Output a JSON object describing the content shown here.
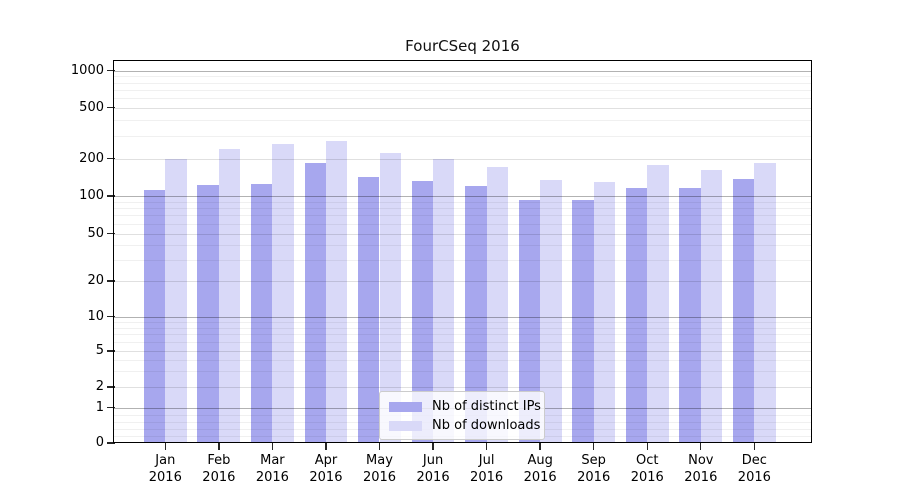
{
  "chart_data": {
    "type": "bar",
    "title": "FourCSeq 2016",
    "categories": [
      {
        "month": "Jan",
        "year": "2016"
      },
      {
        "month": "Feb",
        "year": "2016"
      },
      {
        "month": "Mar",
        "year": "2016"
      },
      {
        "month": "Apr",
        "year": "2016"
      },
      {
        "month": "May",
        "year": "2016"
      },
      {
        "month": "Jun",
        "year": "2016"
      },
      {
        "month": "Jul",
        "year": "2016"
      },
      {
        "month": "Aug",
        "year": "2016"
      },
      {
        "month": "Sep",
        "year": "2016"
      },
      {
        "month": "Oct",
        "year": "2016"
      },
      {
        "month": "Nov",
        "year": "2016"
      },
      {
        "month": "Dec",
        "year": "2016"
      }
    ],
    "series": [
      {
        "name": "Nb of distinct IPs",
        "color": "#a7a7ee",
        "values": [
          112,
          122,
          125,
          183,
          142,
          133,
          120,
          93,
          93,
          116,
          116,
          137
        ]
      },
      {
        "name": "Nb of downloads",
        "color": "#d9d9f8",
        "values": [
          200,
          237,
          258,
          276,
          220,
          200,
          170,
          134,
          129,
          177,
          162,
          185
        ]
      }
    ],
    "xlabel": "",
    "ylabel": "",
    "yscale": "symlog",
    "yticks": [
      0,
      1,
      2,
      5,
      10,
      20,
      50,
      100,
      200,
      500,
      1000
    ],
    "minor_yticks": [
      0.2,
      0.4,
      0.6,
      0.8,
      3,
      4,
      6,
      7,
      8,
      9,
      30,
      40,
      60,
      70,
      80,
      90,
      300,
      400,
      600,
      700,
      800,
      900
    ],
    "ylim": [
      0,
      1400
    ],
    "grid": true,
    "legend_position": "lower center"
  }
}
